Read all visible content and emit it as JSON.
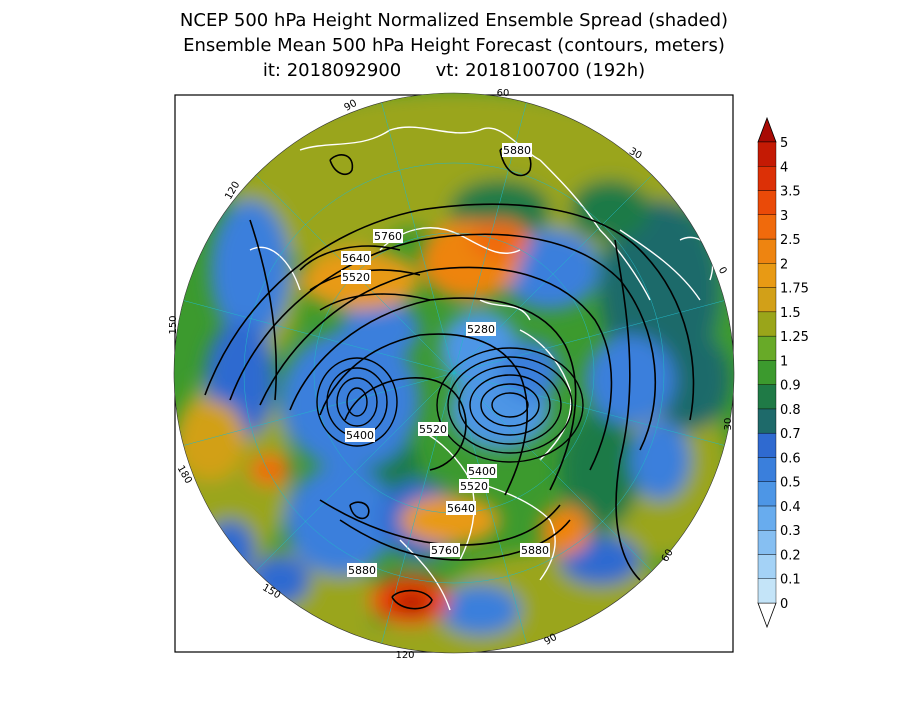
{
  "title": {
    "line1": "NCEP 500 hPa Height Normalized Ensemble Spread (shaded)",
    "line2": "Ensemble Mean 500 hPa Height Forecast (contours, meters)",
    "line3": "it: 2018092900      vt: 2018100700 (192h)"
  },
  "colors": {
    "background_green": "#2e8b2e",
    "olive": "#9aa51a",
    "contour": "#000000",
    "coastline": "#ffffff",
    "graticule": "#22b8c8"
  },
  "legend": {
    "labels": [
      "0",
      "0.1",
      "0.2",
      "0.3",
      "0.4",
      "0.5",
      "0.6",
      "0.7",
      "0.8",
      "0.9",
      "1",
      "1.25",
      "1.5",
      "1.75",
      "2",
      "2.5",
      "3",
      "3.5",
      "4",
      "5"
    ],
    "colors": [
      "#c4e4f8",
      "#a4d2f6",
      "#86bff2",
      "#68acee",
      "#4d96e6",
      "#3a7fdc",
      "#2f6ad0",
      "#1e6a6a",
      "#1f7a46",
      "#3c9a2e",
      "#68aa28",
      "#9aa51a",
      "#d2a018",
      "#e89a14",
      "#ee8410",
      "#f06a0c",
      "#ea4a08",
      "#dc3006",
      "#c41a04",
      "#a80a04"
    ]
  },
  "map": {
    "longitude_labels": [
      "60",
      "30",
      "0",
      "30",
      "60",
      "90",
      "120",
      "150",
      "180",
      "150",
      "120",
      "90"
    ],
    "contour_labels": [
      "5880",
      "5760",
      "5640",
      "5520",
      "5280",
      "5400",
      "5520",
      "5400",
      "5520",
      "5640",
      "5760",
      "5880",
      "5880"
    ]
  }
}
